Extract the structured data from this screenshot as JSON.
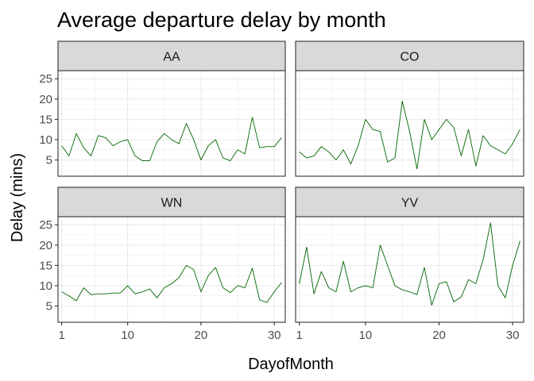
{
  "chart_data": {
    "type": "line",
    "title": "Average departure delay by month",
    "xlabel": "DayofMonth",
    "ylabel": "Delay (mins)",
    "xlim": [
      0.5,
      31.5
    ],
    "ylim": [
      1,
      27
    ],
    "xticks": [
      1,
      10,
      20,
      30
    ],
    "yticks": [
      5,
      10,
      15,
      20,
      25
    ],
    "grid": true,
    "line_color": "#006400",
    "facets": [
      {
        "name": "AA",
        "x": [
          1,
          2,
          3,
          4,
          5,
          6,
          7,
          8,
          9,
          10,
          11,
          12,
          13,
          14,
          15,
          16,
          17,
          18,
          19,
          20,
          21,
          22,
          23,
          24,
          25,
          26,
          27,
          28,
          29,
          30,
          31
        ],
        "values": [
          8.5,
          6,
          11.5,
          8,
          6,
          11,
          10.5,
          8.5,
          9.5,
          10,
          6,
          4.8,
          4.8,
          9.5,
          11.5,
          10,
          9,
          14,
          10,
          5,
          8.5,
          10,
          5.5,
          4.8,
          7.5,
          6.5,
          15.5,
          8,
          8.3,
          8.3,
          10.5
        ]
      },
      {
        "name": "CO",
        "x": [
          1,
          2,
          3,
          4,
          5,
          6,
          7,
          8,
          9,
          10,
          11,
          12,
          13,
          14,
          15,
          16,
          17,
          18,
          19,
          20,
          21,
          22,
          23,
          24,
          25,
          26,
          27,
          28,
          29,
          30,
          31
        ],
        "values": [
          7,
          5.5,
          6,
          8.3,
          7,
          5,
          7.5,
          4,
          8.5,
          15,
          12.5,
          12,
          4.5,
          5.5,
          19.5,
          12,
          2.8,
          15,
          10,
          12.5,
          15,
          13,
          6,
          12.5,
          3.5,
          11,
          8.5,
          7.5,
          6.5,
          9,
          12.5
        ]
      },
      {
        "name": "WN",
        "x": [
          1,
          2,
          3,
          4,
          5,
          6,
          7,
          8,
          9,
          10,
          11,
          12,
          13,
          14,
          15,
          16,
          17,
          18,
          19,
          20,
          21,
          22,
          23,
          24,
          25,
          26,
          27,
          28,
          29,
          30,
          31
        ],
        "values": [
          8.5,
          7.5,
          6.3,
          9.5,
          7.8,
          8,
          8,
          8.2,
          8.2,
          10,
          8,
          8.5,
          9.2,
          7,
          9.5,
          10.5,
          12,
          15,
          14,
          8.5,
          12.5,
          14.5,
          9.5,
          8.3,
          10,
          9.5,
          14.3,
          6.5,
          5.9,
          8.5,
          10.8
        ]
      },
      {
        "name": "YV",
        "x": [
          1,
          2,
          3,
          4,
          5,
          6,
          7,
          8,
          9,
          10,
          11,
          12,
          13,
          14,
          15,
          16,
          17,
          18,
          19,
          20,
          21,
          22,
          23,
          24,
          25,
          26,
          27,
          28,
          29,
          30,
          31
        ],
        "values": [
          10.5,
          19.5,
          8,
          13.5,
          9.5,
          8.5,
          16,
          8.5,
          9.5,
          10,
          9.5,
          20,
          15,
          10,
          9,
          8.5,
          7.8,
          14.5,
          5.2,
          10.5,
          11,
          6,
          7.2,
          11.5,
          10.5,
          16.5,
          25.5,
          10,
          7,
          15,
          21
        ]
      }
    ]
  }
}
